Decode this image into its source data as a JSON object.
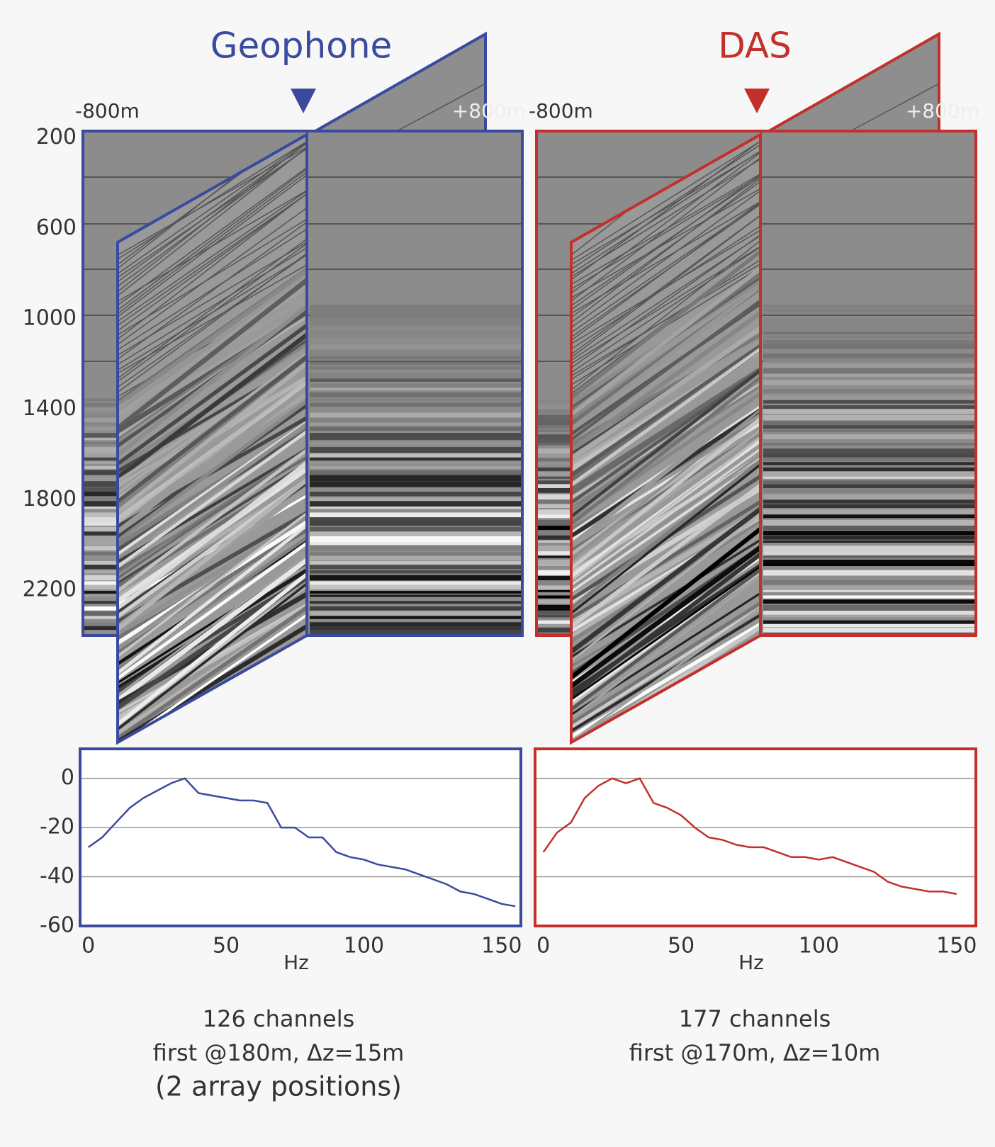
{
  "panels": [
    {
      "title": "Geophone",
      "color": "#3a4a9e",
      "left_label": "-800m",
      "right_label": "+800m",
      "caption": [
        "126 channels",
        "first @180m, Δz=15m",
        "(2 array positions)"
      ]
    },
    {
      "title": "DAS",
      "color": "#c3302b",
      "left_label": "-800m",
      "right_label": "+800m",
      "caption": [
        "177 channels",
        "first @170m, Δz=10m"
      ]
    }
  ],
  "depth_ticks": [
    200,
    600,
    1000,
    1400,
    1800,
    2200
  ],
  "depth_lim": [
    170,
    2400
  ],
  "chart_data": [
    {
      "type": "line",
      "color": "#3a4a9e",
      "x": [
        0,
        5,
        10,
        15,
        20,
        25,
        30,
        35,
        40,
        45,
        50,
        55,
        60,
        65,
        70,
        75,
        80,
        85,
        90,
        95,
        100,
        105,
        110,
        115,
        120,
        125,
        130,
        135,
        140,
        145,
        150,
        155
      ],
      "values": [
        -28,
        -24,
        -18,
        -12,
        -8,
        -5,
        -2,
        0,
        -6,
        -7,
        -8,
        -9,
        -9,
        -10,
        -20,
        -20,
        -24,
        -24,
        -30,
        -32,
        -33,
        -35,
        -36,
        -37,
        -39,
        -41,
        -43,
        -46,
        -47,
        -49,
        -51,
        -52
      ],
      "xlim": [
        -3,
        157
      ],
      "ylim": [
        -60,
        12
      ],
      "xticks": [
        0,
        50,
        100,
        150
      ],
      "yticks": [
        0,
        -20,
        -40,
        -60
      ],
      "xlabel": "Hz"
    },
    {
      "type": "line",
      "color": "#c3302b",
      "x": [
        0,
        5,
        10,
        15,
        20,
        25,
        30,
        35,
        40,
        45,
        50,
        55,
        60,
        65,
        70,
        75,
        80,
        85,
        90,
        95,
        100,
        105,
        110,
        115,
        120,
        125,
        130,
        135,
        140,
        145,
        150
      ],
      "values": [
        -30,
        -22,
        -18,
        -8,
        -3,
        0,
        -2,
        0,
        -10,
        -12,
        -15,
        -20,
        -24,
        -25,
        -27,
        -28,
        -28,
        -30,
        -32,
        -32,
        -33,
        -32,
        -34,
        -36,
        -38,
        -42,
        -44,
        -45,
        -46,
        -46,
        -47
      ],
      "xlim": [
        -3,
        157
      ],
      "ylim": [
        -60,
        12
      ],
      "xticks": [
        0,
        50,
        100,
        150
      ],
      "yticks": [
        0,
        -20,
        -40,
        -60
      ],
      "xlabel": "Hz"
    }
  ]
}
